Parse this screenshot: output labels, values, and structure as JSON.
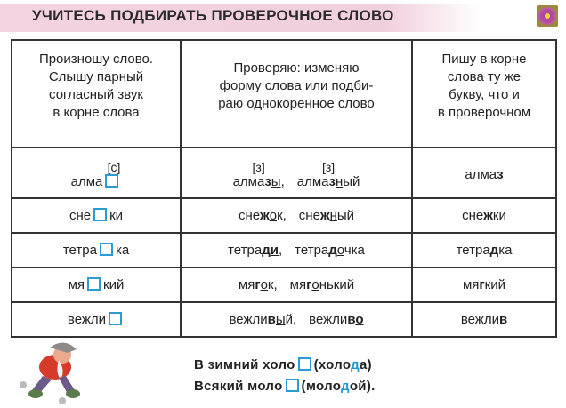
{
  "title": "УЧИТЕСЬ ПОДБИРАТЬ ПРОВЕРОЧНОЕ СЛОВО",
  "icons": {
    "corner": "flower-icon",
    "blank": "blank-square-icon",
    "illustration": "running-gnome-illustration"
  },
  "colors": {
    "band": "#f0cfdc",
    "blank": "#2a9bd4",
    "highlight": "#1f97d3"
  },
  "table": {
    "headers": [
      [
        "Произношу слово.",
        "Слышу парный",
        "согласный звук",
        "в корне слова"
      ],
      [
        "Проверяю: изменяю",
        "форму слова или подби-",
        "раю однокоренное слово"
      ],
      [
        "Пишу в корне",
        "слова ту же",
        "букву, что и",
        "в проверочном"
      ]
    ],
    "rows": [
      {
        "transcription": "[с]",
        "before": "алма",
        "after": "",
        "checks": [
          {
            "transcription": "[з]",
            "segs": [
              {
                "t": "алма"
              },
              {
                "t": "з",
                "b": 1
              },
              {
                "t": "ы",
                "u": 1
              },
              {
                "t": ","
              }
            ]
          },
          {
            "transcription": "[з]",
            "segs": [
              {
                "t": "алма"
              },
              {
                "t": "з",
                "b": 1
              },
              {
                "t": "н",
                "u": 1
              },
              {
                "t": "ый"
              }
            ]
          }
        ],
        "answer": [
          {
            "t": "алма"
          },
          {
            "t": "з",
            "b": 1
          }
        ]
      },
      {
        "before": "сне",
        "after": "ки",
        "checks": [
          {
            "segs": [
              {
                "t": "сне"
              },
              {
                "t": "ж",
                "b": 1
              },
              {
                "t": "о",
                "u": 1
              },
              {
                "t": "к,"
              }
            ]
          },
          {
            "segs": [
              {
                "t": "сне"
              },
              {
                "t": "ж",
                "b": 1
              },
              {
                "t": "н",
                "u": 1
              },
              {
                "t": "ый"
              }
            ]
          }
        ],
        "answer": [
          {
            "t": "сне"
          },
          {
            "t": "ж",
            "b": 1
          },
          {
            "t": "ки"
          }
        ]
      },
      {
        "before": "тетра",
        "after": "ка",
        "checks": [
          {
            "segs": [
              {
                "t": "тетра"
              },
              {
                "t": "д",
                "b": 1
              },
              {
                "t": "и",
                "b": 1,
                "u": 1
              },
              {
                "t": ","
              }
            ]
          },
          {
            "segs": [
              {
                "t": "тетра"
              },
              {
                "t": "д",
                "b": 1
              },
              {
                "t": "о",
                "u": 1
              },
              {
                "t": "чка"
              }
            ]
          }
        ],
        "answer": [
          {
            "t": "тетра"
          },
          {
            "t": "д",
            "b": 1
          },
          {
            "t": "ка"
          }
        ]
      },
      {
        "before": "мя",
        "after": "кий",
        "checks": [
          {
            "segs": [
              {
                "t": "мя"
              },
              {
                "t": "г",
                "b": 1
              },
              {
                "t": "о",
                "u": 1
              },
              {
                "t": "к,"
              }
            ]
          },
          {
            "segs": [
              {
                "t": "мя"
              },
              {
                "t": "г",
                "b": 1
              },
              {
                "t": "о",
                "u": 1
              },
              {
                "t": "нький"
              }
            ]
          }
        ],
        "answer": [
          {
            "t": "мя"
          },
          {
            "t": "г",
            "b": 1
          },
          {
            "t": "кий"
          }
        ]
      },
      {
        "before": "вежли",
        "after": "",
        "checks": [
          {
            "segs": [
              {
                "t": "вежли"
              },
              {
                "t": "в",
                "b": 1
              },
              {
                "t": "ы",
                "u": 1
              },
              {
                "t": "й,"
              }
            ]
          },
          {
            "segs": [
              {
                "t": "вежли"
              },
              {
                "t": "в",
                "b": 1
              },
              {
                "t": "о",
                "b": 1,
                "u": 1
              }
            ]
          }
        ],
        "answer": [
          {
            "t": "вежли"
          },
          {
            "t": "в",
            "b": 1
          }
        ]
      }
    ]
  },
  "proverb": [
    {
      "before": "В зимний холо",
      "paren_open": "(холо",
      "letter": "д",
      "paren_close": "а)"
    },
    {
      "before": "Всякий моло",
      "paren_open": "(моло",
      "letter": "д",
      "paren_close": "ой)."
    }
  ]
}
